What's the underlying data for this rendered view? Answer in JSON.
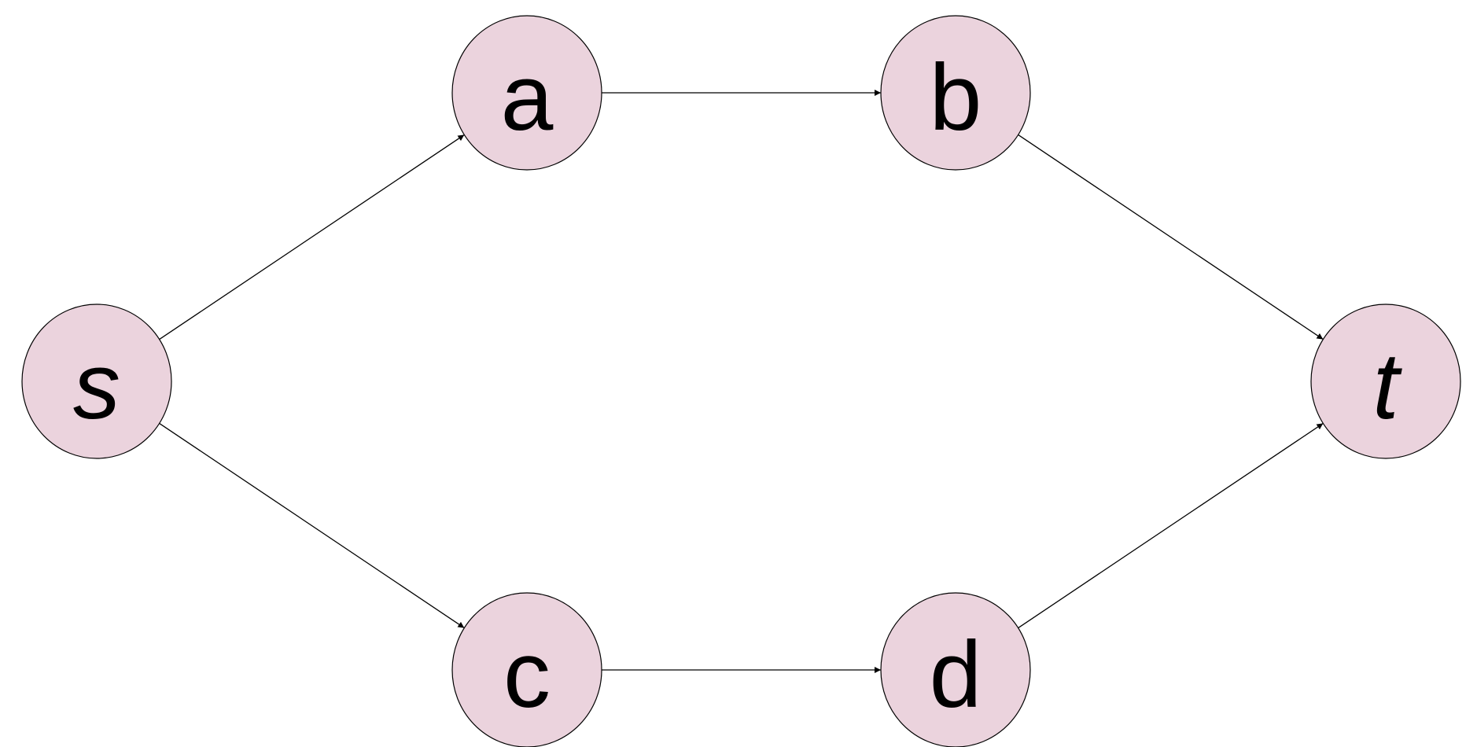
{
  "diagram": {
    "type": "directed-graph",
    "node_fill": "#ebd3dd",
    "edge_color": "#000000",
    "nodes": [
      {
        "id": "s",
        "label": "s",
        "italic": true
      },
      {
        "id": "a",
        "label": "a",
        "italic": false
      },
      {
        "id": "b",
        "label": "b",
        "italic": false
      },
      {
        "id": "c",
        "label": "c",
        "italic": false
      },
      {
        "id": "d",
        "label": "d",
        "italic": false
      },
      {
        "id": "t",
        "label": "t",
        "italic": true
      }
    ],
    "edges": [
      {
        "from": "s",
        "to": "a"
      },
      {
        "from": "a",
        "to": "b"
      },
      {
        "from": "b",
        "to": "t"
      },
      {
        "from": "s",
        "to": "c"
      },
      {
        "from": "c",
        "to": "d"
      },
      {
        "from": "d",
        "to": "t"
      }
    ]
  }
}
